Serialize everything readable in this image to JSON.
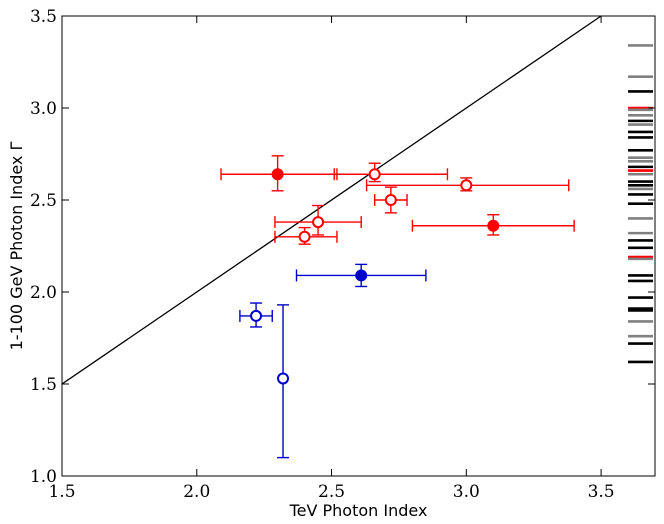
{
  "chart_data": {
    "type": "scatter",
    "title": "",
    "xlabel": "TeV Photon Index",
    "ylabel": "1-100 GeV Photon Index Γ",
    "xlim": [
      1.5,
      3.7
    ],
    "ylim": [
      1.0,
      3.5
    ],
    "xticks": [
      1.5,
      2.0,
      2.5,
      3.0,
      3.5
    ],
    "yticks": [
      1.0,
      1.5,
      2.0,
      2.5,
      3.0,
      3.5
    ],
    "xtick_labels": [
      "1.5",
      "2.0",
      "2.5",
      "3.0",
      "3.5"
    ],
    "ytick_labels": [
      "1.0",
      "1.5",
      "2.0",
      "2.5",
      "3.0",
      "3.5"
    ],
    "grid": false,
    "reference_line": {
      "name": "one-to-one",
      "from": [
        1.5,
        1.5
      ],
      "to": [
        3.5,
        3.5
      ],
      "color": "#000000"
    },
    "colors": {
      "red": "#ff0000",
      "blue": "#0000cc",
      "gray": "#808080",
      "black": "#000000"
    },
    "series": [
      {
        "name": "red",
        "color": "#ff0000",
        "points": [
          {
            "x": 2.3,
            "y": 2.64,
            "filled": true,
            "xerr": [
              0.21,
              0.22
            ],
            "yerr": [
              0.09,
              0.1
            ]
          },
          {
            "x": 2.66,
            "y": 2.64,
            "filled": false,
            "xerr": [
              0.15,
              0.27
            ],
            "yerr": [
              0.04,
              0.06
            ]
          },
          {
            "x": 3.0,
            "y": 2.58,
            "filled": false,
            "xerr": [
              0.37,
              0.38
            ],
            "yerr": [
              0.03,
              0.04
            ]
          },
          {
            "x": 2.72,
            "y": 2.5,
            "filled": false,
            "xerr": [
              0.06,
              0.06
            ],
            "yerr": [
              0.07,
              0.07
            ]
          },
          {
            "x": 2.45,
            "y": 2.38,
            "filled": false,
            "xerr": [
              0.16,
              0.16
            ],
            "yerr": [
              0.07,
              0.09
            ]
          },
          {
            "x": 2.4,
            "y": 2.3,
            "filled": false,
            "xerr": [
              0.11,
              0.12
            ],
            "yerr": [
              0.04,
              0.05
            ]
          },
          {
            "x": 3.1,
            "y": 2.36,
            "filled": true,
            "xerr": [
              0.3,
              0.3
            ],
            "yerr": [
              0.05,
              0.06
            ]
          }
        ]
      },
      {
        "name": "blue",
        "color": "#0000cc",
        "points": [
          {
            "x": 2.61,
            "y": 2.09,
            "filled": true,
            "xerr": [
              0.24,
              0.24
            ],
            "yerr": [
              0.06,
              0.06
            ]
          },
          {
            "x": 2.22,
            "y": 1.87,
            "filled": false,
            "xerr": [
              0.06,
              0.06
            ],
            "yerr": [
              0.06,
              0.07
            ]
          },
          {
            "x": 2.32,
            "y": 1.53,
            "filled": false,
            "xerr": [
              0.0,
              0.0
            ],
            "yerr": [
              0.43,
              0.4
            ]
          }
        ]
      }
    ],
    "rug": {
      "x_start": 3.6,
      "x_end": 3.7,
      "marks": [
        {
          "y": 3.34,
          "color": "gray"
        },
        {
          "y": 3.17,
          "color": "gray"
        },
        {
          "y": 3.09,
          "color": "black"
        },
        {
          "y": 3.0,
          "color": "red"
        },
        {
          "y": 2.99,
          "color": "gray"
        },
        {
          "y": 2.96,
          "color": "gray"
        },
        {
          "y": 2.93,
          "color": "black"
        },
        {
          "y": 2.91,
          "color": "gray"
        },
        {
          "y": 2.87,
          "color": "black"
        },
        {
          "y": 2.84,
          "color": "black"
        },
        {
          "y": 2.77,
          "color": "black"
        },
        {
          "y": 2.73,
          "color": "gray"
        },
        {
          "y": 2.71,
          "color": "gray"
        },
        {
          "y": 2.68,
          "color": "black"
        },
        {
          "y": 2.66,
          "color": "red"
        },
        {
          "y": 2.64,
          "color": "gray"
        },
        {
          "y": 2.6,
          "color": "black"
        },
        {
          "y": 2.58,
          "color": "black"
        },
        {
          "y": 2.56,
          "color": "gray"
        },
        {
          "y": 2.53,
          "color": "black"
        },
        {
          "y": 2.48,
          "color": "black"
        },
        {
          "y": 2.4,
          "color": "gray"
        },
        {
          "y": 2.32,
          "color": "gray"
        },
        {
          "y": 2.28,
          "color": "black"
        },
        {
          "y": 2.24,
          "color": "black"
        },
        {
          "y": 2.19,
          "color": "red"
        },
        {
          "y": 2.18,
          "color": "gray"
        },
        {
          "y": 2.09,
          "color": "black"
        },
        {
          "y": 2.06,
          "color": "black"
        },
        {
          "y": 1.97,
          "color": "black"
        },
        {
          "y": 1.91,
          "color": "black"
        },
        {
          "y": 1.9,
          "color": "black"
        },
        {
          "y": 1.84,
          "color": "gray"
        },
        {
          "y": 1.76,
          "color": "gray"
        },
        {
          "y": 1.72,
          "color": "black"
        },
        {
          "y": 1.62,
          "color": "black"
        }
      ]
    }
  }
}
